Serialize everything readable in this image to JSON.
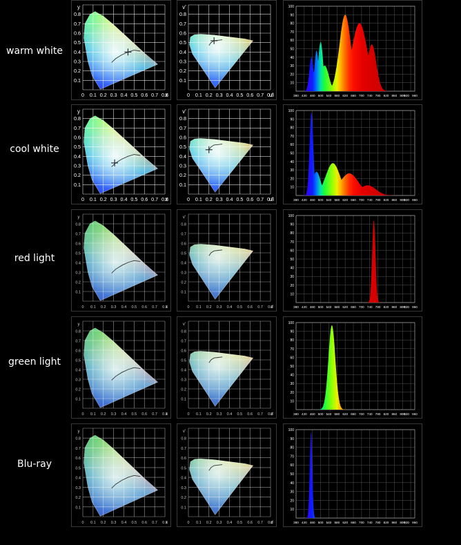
{
  "rows": [
    {
      "label": "warm white",
      "diagram": "classic",
      "spectrum": "warm",
      "cie_point": [
        0.44,
        0.4
      ],
      "uv_point": [
        0.25,
        0.52
      ]
    },
    {
      "label": "cool white",
      "diagram": "classic",
      "spectrum": "cool",
      "cie_point": [
        0.31,
        0.33
      ],
      "uv_point": [
        0.2,
        0.47
      ]
    },
    {
      "label": "red light",
      "diagram": "detailed",
      "spectrum": "red"
    },
    {
      "label": "green light",
      "diagram": "detailed",
      "spectrum": "green"
    },
    {
      "label": "Blu-ray",
      "diagram": "detailed",
      "spectrum": "blue"
    }
  ],
  "chart_data": [
    {
      "type": "chromaticity",
      "name": "cie-xy",
      "xlabel": "x",
      "ylabel": "y",
      "x_ticks": [
        "0",
        "0.1",
        "0.2",
        "0.3",
        "0.4",
        "0.5",
        "0.6",
        "0.7",
        "0.8"
      ],
      "y_ticks": [
        "0.1",
        "0.2",
        "0.3",
        "0.4",
        "0.5",
        "0.6",
        "0.7",
        "0.8"
      ],
      "xlim": [
        0,
        0.8
      ],
      "ylim": [
        0,
        0.9
      ],
      "grid": true
    },
    {
      "type": "chromaticity",
      "name": "cie-uv",
      "xlabel": "u'",
      "ylabel": "v'",
      "x_ticks": [
        "0",
        "0.1",
        "0.2",
        "0.3",
        "0.4",
        "0.5",
        "0.6",
        "0.7",
        "0.8"
      ],
      "y_ticks": [
        "0.1",
        "0.2",
        "0.3",
        "0.4",
        "0.5",
        "0.6",
        "0.7",
        "0.8"
      ],
      "xlim": [
        0,
        0.8
      ],
      "ylim": [
        0,
        0.9
      ],
      "grid": true
    },
    {
      "type": "area",
      "name": "spectrum",
      "x_ticks": [
        "380",
        "420",
        "460",
        "500",
        "540",
        "580",
        "620",
        "660",
        "700",
        "740",
        "780",
        "820",
        "860",
        "900",
        "920",
        "960"
      ],
      "y_ticks": [
        "10",
        "20",
        "30",
        "40",
        "50",
        "60",
        "70",
        "80",
        "90",
        "100"
      ],
      "xlim": [
        380,
        960
      ],
      "ylim": [
        0,
        100
      ],
      "grid": true,
      "series": [
        {
          "id": "warm",
          "peaks": [
            {
              "center": 455,
              "height": 40,
              "width": 10
            },
            {
              "center": 480,
              "height": 48,
              "width": 10
            },
            {
              "center": 500,
              "height": 58,
              "width": 12
            },
            {
              "center": 520,
              "height": 30,
              "width": 20
            },
            {
              "center": 620,
              "height": 90,
              "width": 28
            },
            {
              "center": 690,
              "height": 80,
              "width": 38
            },
            {
              "center": 750,
              "height": 55,
              "width": 22
            }
          ]
        },
        {
          "id": "cool",
          "peaks": [
            {
              "center": 455,
              "height": 98,
              "width": 9
            },
            {
              "center": 480,
              "height": 28,
              "width": 20
            },
            {
              "center": 560,
              "height": 38,
              "width": 35
            },
            {
              "center": 640,
              "height": 26,
              "width": 45
            },
            {
              "center": 730,
              "height": 12,
              "width": 40
            }
          ]
        },
        {
          "id": "red",
          "peaks": [
            {
              "center": 760,
              "height": 95,
              "width": 8
            }
          ]
        },
        {
          "id": "green",
          "peaks": [
            {
              "center": 555,
              "height": 97,
              "width": 17
            }
          ]
        },
        {
          "id": "blue",
          "peaks": [
            {
              "center": 453,
              "height": 98,
              "width": 6
            }
          ]
        }
      ]
    }
  ]
}
